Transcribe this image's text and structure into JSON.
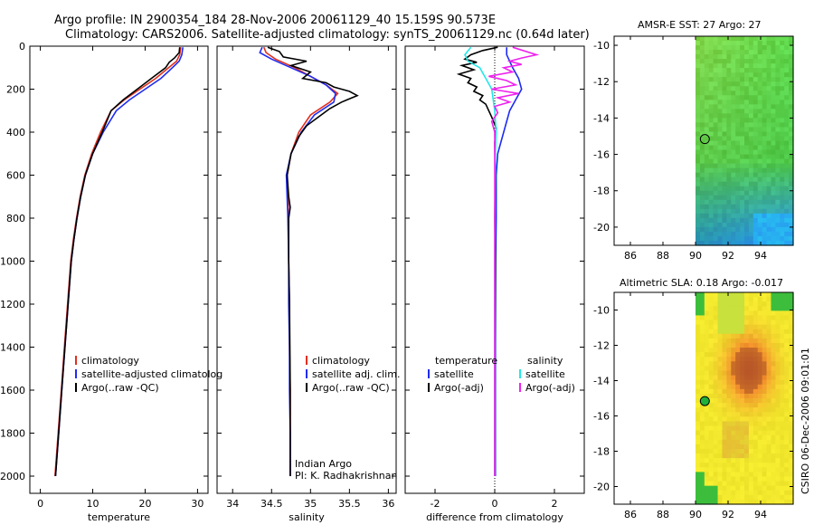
{
  "header": {
    "line1": "Argo profile: IN 2900354_184 28-Nov-2006 20061129_40 15.159S 90.573E",
    "line2": "Climatology: CARS2006. Satellite-adjusted climatology: synTS_20061129.nc (0.64d later)"
  },
  "colors": {
    "climatology": "#e0301e",
    "satellite": "#1f2cf0",
    "argo": "#000000",
    "sat_salinity": "#22e8e8",
    "argo_adj_salinity": "#ee22ee"
  },
  "chart_data": [
    {
      "type": "line",
      "id": "temperature",
      "xlabel": "temperature",
      "ylabel": "",
      "xlim": [
        -2,
        32
      ],
      "ylim": [
        2080,
        0
      ],
      "xticks": [
        0,
        10,
        20,
        30
      ],
      "yticks": [
        0,
        200,
        400,
        600,
        800,
        1000,
        1200,
        1400,
        1600,
        1800,
        2000
      ],
      "legend": [
        "climatology",
        "satellite-adjusted climatolog",
        "Argo(..raw -QC)"
      ],
      "series": [
        {
          "name": "climatology",
          "color": "#e0301e",
          "points": [
            [
              26.8,
              5
            ],
            [
              26.6,
              40
            ],
            [
              26.0,
              70
            ],
            [
              24.5,
              100
            ],
            [
              22.0,
              150
            ],
            [
              19.0,
              200
            ],
            [
              16.0,
              250
            ],
            [
              13.5,
              300
            ],
            [
              11.5,
              400
            ],
            [
              9.8,
              500
            ],
            [
              8.5,
              600
            ],
            [
              7.6,
              700
            ],
            [
              6.9,
              800
            ],
            [
              6.3,
              900
            ],
            [
              5.8,
              1000
            ],
            [
              5.2,
              1200
            ],
            [
              4.6,
              1400
            ],
            [
              4.0,
              1600
            ],
            [
              3.4,
              1800
            ],
            [
              2.8,
              2000
            ]
          ]
        },
        {
          "name": "satellite",
          "color": "#1f2cf0",
          "points": [
            [
              27.2,
              5
            ],
            [
              27.0,
              40
            ],
            [
              26.5,
              70
            ],
            [
              25.2,
              100
            ],
            [
              23.0,
              150
            ],
            [
              20.0,
              200
            ],
            [
              17.0,
              250
            ],
            [
              14.5,
              300
            ],
            [
              12.0,
              400
            ],
            [
              10.0,
              500
            ],
            [
              8.6,
              600
            ],
            [
              7.7,
              700
            ],
            [
              7.0,
              800
            ],
            [
              6.4,
              900
            ],
            [
              5.9,
              1000
            ],
            [
              5.3,
              1200
            ],
            [
              4.7,
              1400
            ],
            [
              4.1,
              1600
            ],
            [
              3.5,
              1800
            ],
            [
              2.9,
              2000
            ]
          ]
        },
        {
          "name": "argo",
          "color": "#000000",
          "points": [
            [
              26.6,
              5
            ],
            [
              26.5,
              30
            ],
            [
              25.6,
              55
            ],
            [
              24.6,
              75
            ],
            [
              23.9,
              100
            ],
            [
              21.2,
              150
            ],
            [
              18.5,
              200
            ],
            [
              15.8,
              250
            ],
            [
              13.5,
              300
            ],
            [
              11.8,
              400
            ],
            [
              10.0,
              500
            ],
            [
              8.6,
              600
            ],
            [
              7.7,
              700
            ],
            [
              7.0,
              800
            ],
            [
              6.4,
              900
            ],
            [
              5.9,
              1000
            ],
            [
              5.3,
              1200
            ],
            [
              4.7,
              1400
            ],
            [
              4.1,
              1600
            ],
            [
              3.5,
              1800
            ],
            [
              2.9,
              2000
            ]
          ]
        }
      ]
    },
    {
      "type": "line",
      "id": "salinity",
      "xlabel": "salinity",
      "ylabel": "",
      "xlim": [
        33.8,
        36.1
      ],
      "ylim": [
        2080,
        0
      ],
      "xticks": [
        34,
        34.5,
        35,
        35.5,
        36
      ],
      "yticks": [],
      "legend": [
        "climatology",
        "satellite adj. clim.",
        "Argo(..raw -QC)"
      ],
      "annotation": [
        "Indian Argo",
        "PI: K. Radhakrishnan"
      ],
      "series": [
        {
          "name": "climatology",
          "color": "#e0301e",
          "points": [
            [
              34.4,
              5
            ],
            [
              34.43,
              30
            ],
            [
              34.55,
              60
            ],
            [
              34.8,
              100
            ],
            [
              35.0,
              140
            ],
            [
              35.2,
              180
            ],
            [
              35.35,
              220
            ],
            [
              35.25,
              260
            ],
            [
              35.0,
              320
            ],
            [
              34.85,
              400
            ],
            [
              34.75,
              500
            ],
            [
              34.7,
              600
            ],
            [
              34.72,
              800
            ],
            [
              34.72,
              1000
            ],
            [
              34.73,
              1200
            ],
            [
              34.73,
              1400
            ],
            [
              34.74,
              1600
            ],
            [
              34.74,
              1800
            ],
            [
              34.74,
              2000
            ]
          ]
        },
        {
          "name": "satellite",
          "color": "#1f2cf0",
          "points": [
            [
              34.38,
              5
            ],
            [
              34.35,
              30
            ],
            [
              34.5,
              60
            ],
            [
              34.75,
              100
            ],
            [
              35.0,
              140
            ],
            [
              35.2,
              180
            ],
            [
              35.32,
              220
            ],
            [
              35.3,
              260
            ],
            [
              35.05,
              320
            ],
            [
              34.88,
              400
            ],
            [
              34.75,
              500
            ],
            [
              34.69,
              600
            ],
            [
              34.71,
              800
            ],
            [
              34.72,
              1000
            ],
            [
              34.72,
              1200
            ],
            [
              34.73,
              1400
            ],
            [
              34.73,
              1600
            ],
            [
              34.74,
              1800
            ],
            [
              34.74,
              2000
            ]
          ]
        },
        {
          "name": "argo",
          "color": "#000000",
          "points": [
            [
              34.45,
              5
            ],
            [
              34.6,
              25
            ],
            [
              34.65,
              50
            ],
            [
              34.95,
              70
            ],
            [
              34.75,
              90
            ],
            [
              35.0,
              120
            ],
            [
              34.9,
              150
            ],
            [
              35.2,
              170
            ],
            [
              35.3,
              190
            ],
            [
              35.5,
              210
            ],
            [
              35.6,
              230
            ],
            [
              35.4,
              260
            ],
            [
              35.25,
              290
            ],
            [
              35.1,
              330
            ],
            [
              34.95,
              370
            ],
            [
              34.85,
              420
            ],
            [
              34.75,
              500
            ],
            [
              34.7,
              600
            ],
            [
              34.72,
              700
            ],
            [
              34.74,
              750
            ],
            [
              34.72,
              800
            ],
            [
              34.72,
              1000
            ],
            [
              34.73,
              1200
            ],
            [
              34.74,
              1600
            ],
            [
              34.74,
              2000
            ]
          ]
        }
      ]
    },
    {
      "type": "line",
      "id": "difference",
      "xlabel": "difference from climatology",
      "ylabel": "",
      "xlim": [
        -3.0,
        3.0
      ],
      "ylim": [
        2080,
        0
      ],
      "xticks": [
        -2,
        0,
        2
      ],
      "yticks": [],
      "legend_temperature_title": "temperature",
      "legend_salinity_title": "salinity",
      "legend": [
        "satellite",
        "Argo(-adj)",
        "satellite",
        "Argo(-adj)"
      ],
      "series": [
        {
          "name": "satellite (temperature)",
          "color": "#1f2cf0",
          "points": [
            [
              0.4,
              5
            ],
            [
              0.4,
              40
            ],
            [
              0.5,
              70
            ],
            [
              0.6,
              100
            ],
            [
              0.8,
              150
            ],
            [
              0.9,
              200
            ],
            [
              0.7,
              250
            ],
            [
              0.5,
              300
            ],
            [
              0.4,
              350
            ],
            [
              0.3,
              400
            ],
            [
              0.2,
              450
            ],
            [
              0.1,
              500
            ],
            [
              0.05,
              600
            ],
            [
              0.05,
              800
            ],
            [
              0.03,
              1000
            ],
            [
              0.02,
              1400
            ],
            [
              0.02,
              2000
            ]
          ]
        },
        {
          "name": "Argo (temperature)",
          "color": "#000000",
          "points": [
            [
              0.1,
              5
            ],
            [
              -0.4,
              20
            ],
            [
              -0.8,
              40
            ],
            [
              -1.0,
              60
            ],
            [
              -0.6,
              75
            ],
            [
              -1.1,
              90
            ],
            [
              -0.7,
              110
            ],
            [
              -1.2,
              130
            ],
            [
              -0.8,
              150
            ],
            [
              -0.9,
              170
            ],
            [
              -0.6,
              190
            ],
            [
              -0.7,
              210
            ],
            [
              -0.4,
              230
            ],
            [
              -0.5,
              250
            ],
            [
              -0.3,
              270
            ],
            [
              -0.2,
              300
            ],
            [
              -0.1,
              330
            ],
            [
              0.05,
              380
            ],
            [
              0.0,
              450
            ],
            [
              0.02,
              600
            ],
            [
              0.0,
              800
            ],
            [
              0.02,
              1000
            ],
            [
              0.01,
              1400
            ],
            [
              0.0,
              2000
            ]
          ]
        },
        {
          "name": "satellite (salinity)",
          "color": "#22e8e8",
          "points": [
            [
              -0.8,
              5
            ],
            [
              -1.0,
              40
            ],
            [
              -0.9,
              70
            ],
            [
              -0.5,
              100
            ],
            [
              -0.3,
              150
            ],
            [
              -0.1,
              200
            ],
            [
              0.0,
              300
            ],
            [
              0.05,
              400
            ],
            [
              0.02,
              500
            ],
            [
              0.01,
              700
            ],
            [
              0.0,
              1000
            ],
            [
              0.0,
              1400
            ],
            [
              0.0,
              2000
            ]
          ]
        },
        {
          "name": "Argo-adj (salinity)",
          "color": "#ee22ee",
          "points": [
            [
              0.6,
              5
            ],
            [
              1.4,
              40
            ],
            [
              0.9,
              55
            ],
            [
              0.5,
              70
            ],
            [
              0.9,
              85
            ],
            [
              0.3,
              100
            ],
            [
              0.6,
              120
            ],
            [
              -0.2,
              140
            ],
            [
              0.4,
              160
            ],
            [
              0.7,
              180
            ],
            [
              -0.1,
              200
            ],
            [
              0.8,
              220
            ],
            [
              0.1,
              240
            ],
            [
              0.5,
              260
            ],
            [
              0.0,
              280
            ],
            [
              0.1,
              310
            ],
            [
              -0.1,
              350
            ],
            [
              0.0,
              400
            ],
            [
              0.0,
              1000
            ],
            [
              0.0,
              2000
            ]
          ]
        }
      ]
    },
    {
      "type": "heatmap",
      "id": "sst",
      "title": "AMSR-E SST: 27 Argo: 27",
      "xlim": [
        85,
        96
      ],
      "ylim": [
        -21,
        -9.5
      ],
      "xticks": [
        86,
        88,
        90,
        92,
        94
      ],
      "yticks": [
        -10,
        -12,
        -14,
        -16,
        -18,
        -20
      ],
      "data_xrange": [
        90.0,
        96.0
      ],
      "marker": {
        "lon": 90.573,
        "lat": -15.159
      }
    },
    {
      "type": "heatmap",
      "id": "sla",
      "title": "Altimetric SLA: 0.18 Argo: -0.017",
      "xlim": [
        85,
        96
      ],
      "ylim": [
        -21,
        -9.0
      ],
      "xticks": [
        86,
        88,
        90,
        92,
        94
      ],
      "yticks": [
        -10,
        -12,
        -14,
        -16,
        -18,
        -20
      ],
      "data_xrange": [
        90.0,
        96.0
      ],
      "marker": {
        "lon": 90.573,
        "lat": -15.159
      }
    }
  ],
  "footer": {
    "stamp": "CSIRO 06-Dec-2006 09:01:01"
  }
}
